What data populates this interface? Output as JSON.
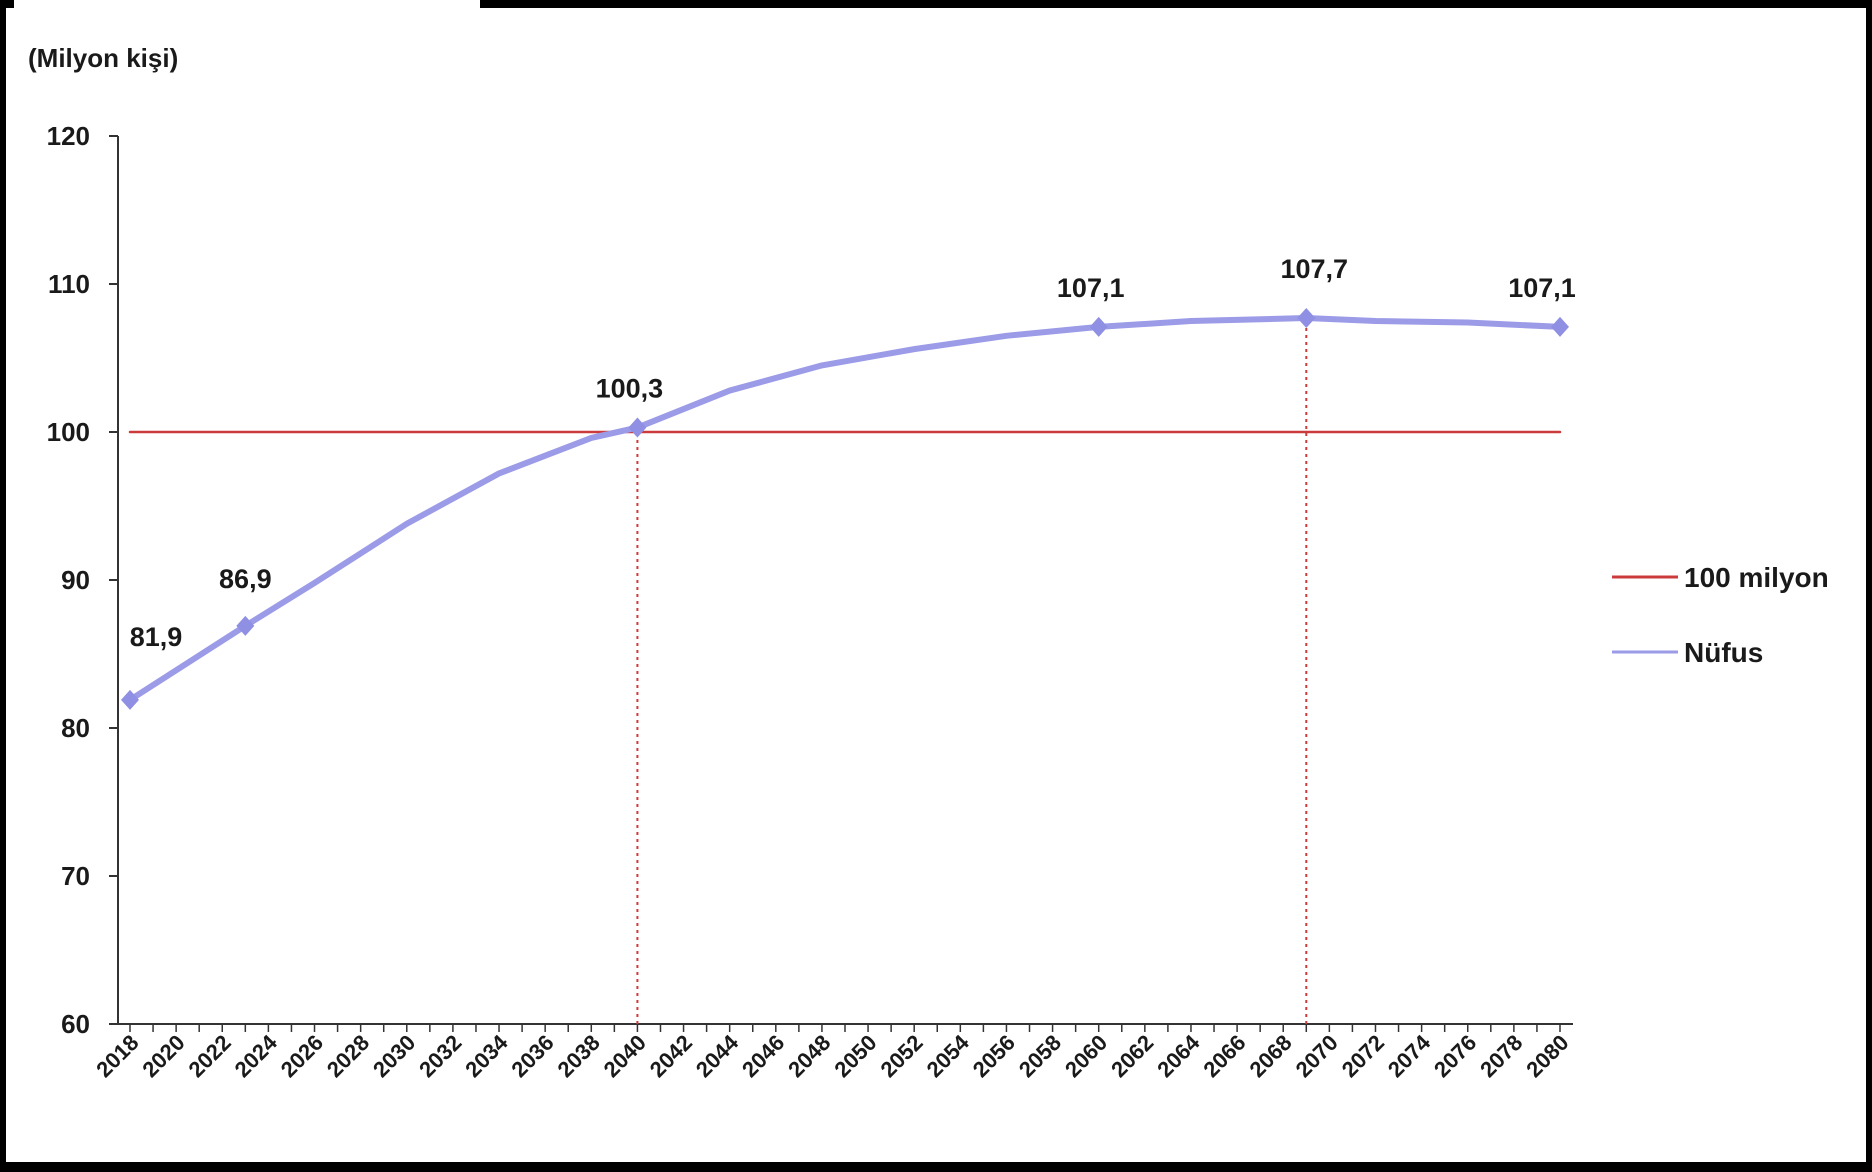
{
  "chart_data": {
    "type": "line",
    "ylabel": "(Milyon kişi)",
    "ylim": [
      60,
      120
    ],
    "yticks": [
      60,
      70,
      80,
      90,
      100,
      110,
      120
    ],
    "x_tick_labels": [
      "2018",
      "2020",
      "2022",
      "2024",
      "2026",
      "2028",
      "2030",
      "2032",
      "2034",
      "2036",
      "2038",
      "2040",
      "2042",
      "2044",
      "2046",
      "2048",
      "2050",
      "2052",
      "2054",
      "2056",
      "2058",
      "2060",
      "2062",
      "2064",
      "2066",
      "2068",
      "2070",
      "2072",
      "2074",
      "2076",
      "2078",
      "2080"
    ],
    "xlim": [
      2018,
      2080
    ],
    "grid": false,
    "legend_position": "right",
    "series": [
      {
        "name": "100 milyon",
        "color": "#cc3b3b",
        "x": [
          2018,
          2080
        ],
        "y": [
          100,
          100
        ]
      },
      {
        "name": "Nüfus",
        "color": "#9b9be8",
        "x": [
          2018,
          2023,
          2026,
          2030,
          2034,
          2038,
          2040,
          2044,
          2048,
          2052,
          2056,
          2060,
          2064,
          2069,
          2072,
          2076,
          2080
        ],
        "y": [
          81.9,
          86.9,
          89.8,
          93.8,
          97.2,
          99.6,
          100.3,
          102.8,
          104.5,
          105.6,
          106.5,
          107.1,
          107.5,
          107.7,
          107.5,
          107.4,
          107.1
        ],
        "markers": [
          {
            "x": 2018,
            "y": 81.9,
            "label": "81,9"
          },
          {
            "x": 2023,
            "y": 86.9,
            "label": "86,9"
          },
          {
            "x": 2040,
            "y": 100.3,
            "label": "100,3"
          },
          {
            "x": 2060,
            "y": 107.1,
            "label": "107,1"
          },
          {
            "x": 2069,
            "y": 107.7,
            "label": "107,7"
          },
          {
            "x": 2080,
            "y": 107.1,
            "label": "107,1"
          }
        ]
      }
    ],
    "reference_lines": [
      {
        "x": 2040,
        "from": 60,
        "to": 100.3,
        "color": "#cc3b3b",
        "style": "dotted"
      },
      {
        "x": 2069,
        "from": 60,
        "to": 107.7,
        "color": "#cc3b3b",
        "style": "dotted"
      }
    ]
  }
}
